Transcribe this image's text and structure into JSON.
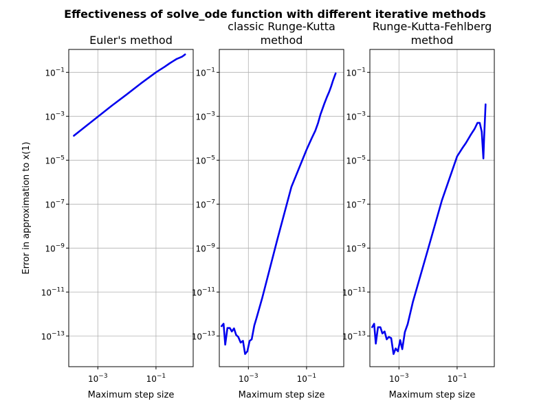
{
  "figure": {
    "title": "Effectiveness of solve_ode function with different iterative methods",
    "ylabel": "Error in approximation to x(1)",
    "line_color": "#0000ee",
    "grid_color": "#b0b0b0"
  },
  "chart_data": [
    {
      "type": "line",
      "title_lines": [
        "Euler's method"
      ],
      "xlabel": "Maximum step size",
      "x_scale": "log",
      "y_scale": "log",
      "xlim": [
        0.0001,
        1.9
      ],
      "ylim": [
        4e-15,
        1.1
      ],
      "grid": true,
      "x_ticks": [
        {
          "value": 0.001,
          "label": "10−3"
        },
        {
          "value": 0.1,
          "label": "10−1"
        }
      ],
      "y_ticks": [
        {
          "value": 0.1,
          "label": "10−1"
        },
        {
          "value": 0.001,
          "label": "10−3"
        },
        {
          "value": 1e-05,
          "label": "10−5"
        },
        {
          "value": 1e-07,
          "label": "10−7"
        },
        {
          "value": 1e-09,
          "label": "10−9"
        },
        {
          "value": 1e-11,
          "label": "10−11"
        },
        {
          "value": 1e-13,
          "label": "10−13"
        }
      ],
      "series": [
        {
          "x": [
            0.00015,
            0.0003,
            0.001,
            0.003,
            0.01,
            0.03,
            0.1,
            0.2,
            0.3,
            0.4,
            0.5,
            0.6,
            0.8,
            1.0
          ],
          "y": [
            0.00013,
            0.00027,
            0.00095,
            0.003,
            0.01,
            0.031,
            0.1,
            0.18,
            0.26,
            0.33,
            0.4,
            0.44,
            0.52,
            0.65
          ]
        }
      ]
    },
    {
      "type": "line",
      "title_lines": [
        "classic Runge-Kutta",
        "method"
      ],
      "xlabel": "Maximum step size",
      "x_scale": "log",
      "y_scale": "log",
      "xlim": [
        0.0001,
        1.9
      ],
      "ylim": [
        4e-15,
        1.1
      ],
      "grid": true,
      "x_ticks": [
        {
          "value": 0.001,
          "label": "10−3"
        },
        {
          "value": 0.1,
          "label": "10−1"
        }
      ],
      "y_ticks": [
        {
          "value": 0.1,
          "label": "10−1"
        },
        {
          "value": 0.001,
          "label": "10−3"
        },
        {
          "value": 1e-05,
          "label": "10−5"
        },
        {
          "value": 1e-07,
          "label": "10−7"
        },
        {
          "value": 1e-09,
          "label": "10−9"
        },
        {
          "value": 1e-11,
          "label": "10−11"
        },
        {
          "value": 1e-13,
          "label": "10−13"
        }
      ],
      "series": [
        {
          "x": [
            0.00012,
            0.00014,
            0.00016,
            0.00019,
            0.00023,
            0.00027,
            0.00032,
            0.00038,
            0.00045,
            0.00054,
            0.00065,
            0.00077,
            0.00092,
            0.0011,
            0.0013,
            0.0016,
            0.0019,
            0.003,
            0.01,
            0.03,
            0.1,
            0.15,
            0.2,
            0.25,
            0.3,
            0.35,
            0.4,
            0.5,
            0.6,
            0.7,
            0.8,
            1.0
          ],
          "y": [
            2.8e-13,
            3.6e-13,
            4e-14,
            2.3e-13,
            2.3e-13,
            1.6e-13,
            2.2e-13,
            1.1e-13,
            9e-14,
            5e-14,
            6e-14,
            1.5e-14,
            2e-14,
            6e-14,
            7e-14,
            3e-13,
            6.5e-13,
            5.5e-12,
            2.6e-09,
            6e-07,
            3e-05,
            0.0001,
            0.00022,
            0.0005,
            0.0012,
            0.0021,
            0.0035,
            0.0075,
            0.013,
            0.023,
            0.04,
            0.09
          ]
        }
      ]
    },
    {
      "type": "line",
      "title_lines": [
        "Runge-Kutta-Fehlberg",
        "method"
      ],
      "xlabel": "Maximum step size",
      "x_scale": "log",
      "y_scale": "log",
      "xlim": [
        0.0001,
        1.9
      ],
      "ylim": [
        4e-15,
        1.1
      ],
      "grid": true,
      "x_ticks": [
        {
          "value": 0.001,
          "label": "10−3"
        },
        {
          "value": 0.1,
          "label": "10−1"
        }
      ],
      "y_ticks": [
        {
          "value": 0.1,
          "label": "10−1"
        },
        {
          "value": 0.001,
          "label": "10−3"
        },
        {
          "value": 1e-05,
          "label": "10−5"
        },
        {
          "value": 1e-07,
          "label": "10−7"
        },
        {
          "value": 1e-09,
          "label": "10−9"
        },
        {
          "value": 1e-11,
          "label": "10−11"
        },
        {
          "value": 1e-13,
          "label": "10−13"
        }
      ],
      "series": [
        {
          "x": [
            0.00012,
            0.00014,
            0.00016,
            0.00019,
            0.00023,
            0.00027,
            0.00032,
            0.00038,
            0.00045,
            0.00054,
            0.00065,
            0.00077,
            0.00092,
            0.0011,
            0.0013,
            0.0016,
            0.002,
            0.003,
            0.01,
            0.03,
            0.1,
            0.15,
            0.2,
            0.3,
            0.4,
            0.5,
            0.6,
            0.7,
            0.8,
            0.85,
            0.95
          ],
          "y": [
            2.5e-13,
            3.6e-13,
            4.5e-14,
            2.5e-13,
            2.5e-13,
            1.3e-13,
            1.6e-13,
            7e-14,
            9e-14,
            8e-14,
            1.5e-14,
            2.7e-14,
            2e-14,
            6.5e-14,
            2.5e-14,
            1.5e-13,
            3.5e-13,
            3.5e-12,
            9e-10,
            1.5e-07,
            1.5e-05,
            3.5e-05,
            6e-05,
            0.00015,
            0.00027,
            0.0005,
            0.0005,
            0.0002,
            1.2e-05,
            0.00011,
            0.0035
          ]
        }
      ]
    }
  ]
}
